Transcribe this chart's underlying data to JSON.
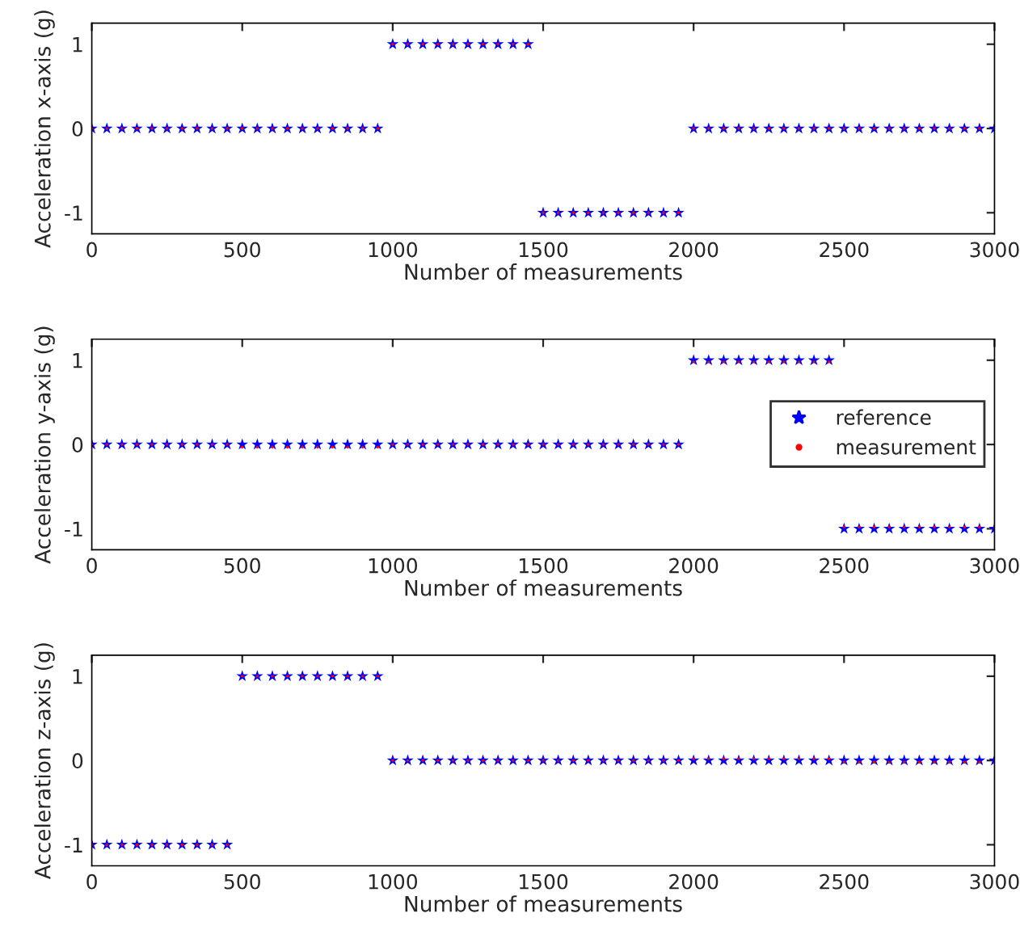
{
  "chart_data": [
    {
      "type": "scatter",
      "xlabel": "Number of measurements",
      "ylabel": "Acceleration x-axis (g)",
      "x": [
        0,
        50,
        100,
        150,
        200,
        250,
        300,
        350,
        400,
        450,
        500,
        550,
        600,
        650,
        700,
        750,
        800,
        850,
        900,
        950,
        1000,
        1050,
        1100,
        1150,
        1200,
        1250,
        1300,
        1350,
        1400,
        1450,
        1500,
        1550,
        1600,
        1650,
        1700,
        1750,
        1800,
        1850,
        1900,
        1950,
        2000,
        2050,
        2100,
        2150,
        2200,
        2250,
        2300,
        2350,
        2400,
        2450,
        2500,
        2550,
        2600,
        2650,
        2700,
        2750,
        2800,
        2850,
        2900,
        2950,
        3000
      ],
      "series": [
        {
          "color": "#0000ff",
          "marker": "star",
          "values": [
            0,
            0,
            0,
            0,
            0,
            0,
            0,
            0,
            0,
            0,
            0,
            0,
            0,
            0,
            0,
            0,
            0,
            0,
            0,
            0,
            1,
            1,
            1,
            1,
            1,
            1,
            1,
            1,
            1,
            1,
            -1,
            -1,
            -1,
            -1,
            -1,
            -1,
            -1,
            -1,
            -1,
            -1,
            0,
            0,
            0,
            0,
            0,
            0,
            0,
            0,
            0,
            0,
            0,
            0,
            0,
            0,
            0,
            0,
            0,
            0,
            0,
            0,
            0
          ]
        },
        {
          "color": "#ff0000",
          "marker": "circle",
          "values": [
            0,
            0,
            0,
            0,
            0,
            0,
            0,
            0,
            0,
            0,
            0,
            0,
            0,
            0,
            0,
            0,
            0,
            0,
            0,
            0,
            1,
            1,
            1,
            1,
            1,
            1,
            1,
            1,
            1,
            1,
            -1,
            -1,
            -1,
            -1,
            -1,
            -1,
            -1,
            -1,
            -1,
            -1,
            0,
            0,
            0,
            0,
            0,
            0,
            0,
            0,
            0,
            0,
            0,
            0,
            0,
            0,
            0,
            0,
            0,
            0,
            0,
            0,
            0
          ]
        }
      ],
      "xlim": [
        0,
        3000
      ],
      "xticks": [
        0,
        500,
        1000,
        1500,
        2000,
        2500,
        3000
      ],
      "ylim": [
        -1.25,
        1.25
      ],
      "yticks": [
        -1,
        0,
        1
      ]
    },
    {
      "type": "scatter",
      "xlabel": "Number of measurements",
      "ylabel": "Acceleration y-axis (g)",
      "legend": "right",
      "x": [
        0,
        50,
        100,
        150,
        200,
        250,
        300,
        350,
        400,
        450,
        500,
        550,
        600,
        650,
        700,
        750,
        800,
        850,
        900,
        950,
        1000,
        1050,
        1100,
        1150,
        1200,
        1250,
        1300,
        1350,
        1400,
        1450,
        1500,
        1550,
        1600,
        1650,
        1700,
        1750,
        1800,
        1850,
        1900,
        1950,
        2000,
        2050,
        2100,
        2150,
        2200,
        2250,
        2300,
        2350,
        2400,
        2450,
        2500,
        2550,
        2600,
        2650,
        2700,
        2750,
        2800,
        2850,
        2900,
        2950,
        3000
      ],
      "series": [
        {
          "name": "reference",
          "color": "#0000ff",
          "marker": "star",
          "values": [
            0,
            0,
            0,
            0,
            0,
            0,
            0,
            0,
            0,
            0,
            0,
            0,
            0,
            0,
            0,
            0,
            0,
            0,
            0,
            0,
            0,
            0,
            0,
            0,
            0,
            0,
            0,
            0,
            0,
            0,
            0,
            0,
            0,
            0,
            0,
            0,
            0,
            0,
            0,
            0,
            1,
            1,
            1,
            1,
            1,
            1,
            1,
            1,
            1,
            1,
            -1,
            -1,
            -1,
            -1,
            -1,
            -1,
            -1,
            -1,
            -1,
            -1,
            -1
          ]
        },
        {
          "name": "measurement",
          "color": "#ff0000",
          "marker": "circle",
          "values": [
            0,
            0,
            0,
            0,
            0,
            0,
            0,
            0,
            0,
            0,
            -0.03,
            -0.03,
            -0.03,
            -0.03,
            -0.03,
            -0.03,
            -0.03,
            -0.03,
            -0.03,
            -0.03,
            0,
            0,
            0,
            0,
            0,
            0,
            0,
            0,
            0,
            0,
            0,
            0,
            0,
            0,
            0,
            0,
            0,
            0,
            0,
            0,
            0.98,
            0.98,
            0.98,
            0.98,
            0.98,
            0.98,
            0.98,
            0.98,
            0.98,
            0.98,
            -0.98,
            -0.98,
            -0.98,
            -0.98,
            -0.98,
            -0.98,
            -0.98,
            -0.98,
            -0.98,
            -0.98,
            -0.98
          ]
        }
      ],
      "xlim": [
        0,
        3000
      ],
      "xticks": [
        0,
        500,
        1000,
        1500,
        2000,
        2500,
        3000
      ],
      "ylim": [
        -1.25,
        1.25
      ],
      "yticks": [
        -1,
        0,
        1
      ]
    },
    {
      "type": "scatter",
      "xlabel": "Number of measurements",
      "ylabel": "Acceleration z-axis (g)",
      "x": [
        0,
        50,
        100,
        150,
        200,
        250,
        300,
        350,
        400,
        450,
        500,
        550,
        600,
        650,
        700,
        750,
        800,
        850,
        900,
        950,
        1000,
        1050,
        1100,
        1150,
        1200,
        1250,
        1300,
        1350,
        1400,
        1450,
        1500,
        1550,
        1600,
        1650,
        1700,
        1750,
        1800,
        1850,
        1900,
        1950,
        2000,
        2050,
        2100,
        2150,
        2200,
        2250,
        2300,
        2350,
        2400,
        2450,
        2500,
        2550,
        2600,
        2650,
        2700,
        2750,
        2800,
        2850,
        2900,
        2950,
        3000
      ],
      "series": [
        {
          "color": "#0000ff",
          "marker": "star",
          "values": [
            -1,
            -1,
            -1,
            -1,
            -1,
            -1,
            -1,
            -1,
            -1,
            -1,
            1,
            1,
            1,
            1,
            1,
            1,
            1,
            1,
            1,
            1,
            0,
            0,
            0,
            0,
            0,
            0,
            0,
            0,
            0,
            0,
            0,
            0,
            0,
            0,
            0,
            0,
            0,
            0,
            0,
            0,
            0,
            0,
            0,
            0,
            0,
            0,
            0,
            0,
            0,
            0,
            0,
            0,
            0,
            0,
            0,
            0,
            0,
            0,
            0,
            0,
            0
          ]
        },
        {
          "color": "#ff0000",
          "marker": "circle",
          "values": [
            -1,
            -1,
            -1,
            -1,
            -1,
            -1,
            -1,
            -1,
            -1,
            -1,
            1,
            1,
            1,
            1,
            1,
            1,
            1,
            1,
            1,
            1,
            0,
            0,
            0,
            0,
            0,
            0,
            0,
            0,
            0,
            0,
            0,
            0,
            0,
            0,
            0,
            0,
            0,
            0,
            0,
            0,
            0.02,
            0.02,
            0.02,
            0.02,
            0.02,
            0.02,
            0.02,
            0.02,
            0.02,
            0.02,
            -0.02,
            -0.02,
            -0.02,
            -0.02,
            -0.02,
            -0.02,
            -0.02,
            -0.02,
            -0.02,
            -0.02,
            -0.02
          ]
        }
      ],
      "xlim": [
        0,
        3000
      ],
      "xticks": [
        0,
        500,
        1000,
        1500,
        2000,
        2500,
        3000
      ],
      "ylim": [
        -1.25,
        1.25
      ],
      "yticks": [
        -1,
        0,
        1
      ]
    }
  ]
}
